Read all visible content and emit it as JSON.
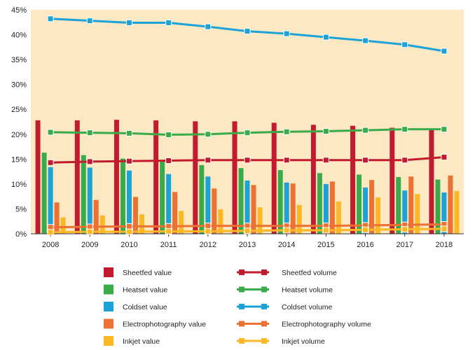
{
  "chart_data": {
    "type": "bar",
    "categories": [
      "2008",
      "2009",
      "2010",
      "2011",
      "2012",
      "2013",
      "2014",
      "2015",
      "2016",
      "2017",
      "2018"
    ],
    "ylim": [
      0,
      45
    ],
    "y_ticks": [
      "0%",
      "5%",
      "10%",
      "15%",
      "20%",
      "25%",
      "30%",
      "35%",
      "40%",
      "45%"
    ],
    "grid": false,
    "background_color": "#fce8c3",
    "legend_position": "bottom",
    "bar_series": [
      {
        "name": "Sheetfed value",
        "color": "#c21a2e",
        "values": [
          22.8,
          22.8,
          22.9,
          22.8,
          22.6,
          22.6,
          22.3,
          21.9,
          21.7,
          21.3,
          21.0
        ]
      },
      {
        "name": "Heatset value",
        "color": "#3aab4a",
        "values": [
          16.3,
          15.8,
          15.1,
          14.6,
          13.8,
          13.2,
          12.8,
          12.2,
          11.9,
          11.4,
          10.9
        ]
      },
      {
        "name": "Coldset value",
        "color": "#1ba3d8",
        "values": [
          13.4,
          13.3,
          12.7,
          12.0,
          11.5,
          10.7,
          10.3,
          10.0,
          9.3,
          8.7,
          8.3
        ]
      },
      {
        "name": "Electrophotography value",
        "color": "#ec7132",
        "values": [
          6.3,
          6.8,
          7.4,
          8.4,
          9.1,
          9.8,
          10.1,
          10.5,
          10.8,
          11.5,
          11.7
        ]
      },
      {
        "name": "Inkjet value",
        "color": "#fbb724",
        "values": [
          3.3,
          3.7,
          3.9,
          4.6,
          4.9,
          5.3,
          5.8,
          6.5,
          7.3,
          8.0,
          8.6
        ]
      }
    ],
    "line_series": [
      {
        "name": "Sheetfed volume",
        "color": "#c21a2e",
        "values": [
          14.3,
          14.5,
          14.6,
          14.7,
          14.8,
          14.8,
          14.8,
          14.8,
          14.8,
          14.8,
          15.4
        ]
      },
      {
        "name": "Heatset volume",
        "color": "#3aab4a",
        "values": [
          20.4,
          20.3,
          20.2,
          19.9,
          20.0,
          20.3,
          20.5,
          20.6,
          20.8,
          21.0,
          21.0
        ]
      },
      {
        "name": "Coldset volume",
        "color": "#1ba3d8",
        "values": [
          43.2,
          42.8,
          42.4,
          42.4,
          41.6,
          40.7,
          40.2,
          39.5,
          38.8,
          38.0,
          36.7
        ]
      },
      {
        "name": "Electrophotography volume",
        "color": "#ec7132",
        "values": [
          1.3,
          1.4,
          1.5,
          1.5,
          1.6,
          1.6,
          1.6,
          1.6,
          1.7,
          1.8,
          1.9
        ]
      },
      {
        "name": "Inkjet volume",
        "color": "#fbb724",
        "values": [
          0.3,
          0.4,
          0.4,
          0.5,
          0.5,
          0.6,
          0.7,
          0.7,
          0.8,
          0.9,
          1.0
        ]
      }
    ]
  }
}
